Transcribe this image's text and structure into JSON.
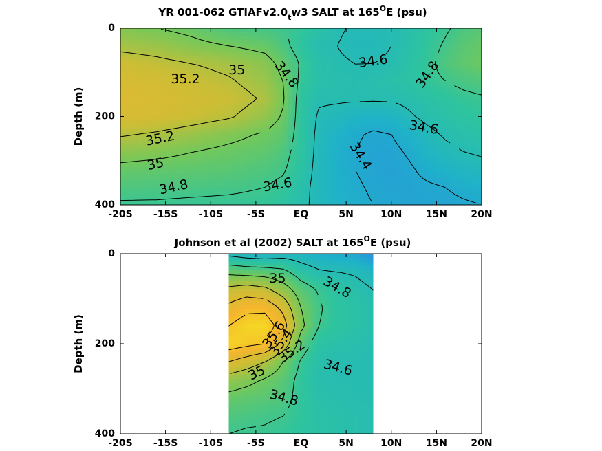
{
  "chart_data": [
    {
      "type": "heatmap",
      "title": "YR 001-062 GTIAFv2.0",
      "title_subscript": "t",
      "title_suffix": "w3 SALT at 165",
      "title_degree": "O",
      "title_end": "E (psu)",
      "ylabel": "Depth (m)",
      "x_ticks": [
        "-20S",
        "-15S",
        "-10S",
        "-5S",
        "EQ",
        "5N",
        "10N",
        "15N",
        "20N"
      ],
      "x_tick_values": [
        -20,
        -15,
        -10,
        -5,
        0,
        5,
        10,
        15,
        20
      ],
      "y_ticks": [
        "0",
        "200",
        "400"
      ],
      "y_tick_values": [
        0,
        200,
        400
      ],
      "xlim": [
        -20,
        20
      ],
      "ylim": [
        400,
        0
      ],
      "data_xlim": [
        -20,
        20
      ],
      "colormap": [
        "#2a8fe0",
        "#1fb2c8",
        "#2ec49e",
        "#74c85a",
        "#c9be36",
        "#f5b52e",
        "#f5e620"
      ],
      "color_range": [
        34.2,
        35.8
      ],
      "salinity_field": {
        "x": [
          -20,
          -16,
          -12,
          -8,
          -4,
          -2,
          0,
          2,
          4,
          6,
          8,
          10,
          12,
          14,
          16,
          18,
          20
        ],
        "depth": [
          0,
          40,
          80,
          120,
          160,
          200,
          240,
          280,
          320,
          360,
          400
        ],
        "values": [
          [
            35.05,
            35.0,
            34.95,
            34.85,
            34.82,
            34.8,
            34.75,
            34.68,
            34.62,
            34.58,
            34.58,
            34.6,
            34.66,
            34.72,
            34.78,
            34.85,
            34.9
          ],
          [
            35.15,
            35.12,
            35.05,
            35.0,
            34.95,
            34.85,
            34.72,
            34.62,
            34.6,
            34.56,
            34.56,
            34.6,
            34.66,
            34.74,
            34.82,
            34.9,
            34.95
          ],
          [
            35.3,
            35.25,
            35.2,
            35.15,
            35.07,
            34.95,
            34.78,
            34.66,
            34.62,
            34.6,
            34.6,
            34.62,
            34.68,
            34.76,
            34.86,
            34.92,
            34.97
          ],
          [
            35.35,
            35.32,
            35.28,
            35.22,
            35.12,
            35.0,
            34.76,
            34.66,
            34.64,
            34.62,
            34.64,
            34.66,
            34.7,
            34.75,
            34.8,
            34.84,
            34.87
          ],
          [
            35.38,
            35.35,
            35.32,
            35.28,
            35.18,
            35.02,
            34.72,
            34.62,
            34.62,
            34.62,
            34.62,
            34.62,
            34.64,
            34.68,
            34.72,
            34.76,
            34.78
          ],
          [
            35.35,
            35.33,
            35.28,
            35.22,
            35.1,
            34.98,
            34.72,
            34.58,
            34.55,
            34.5,
            34.48,
            34.5,
            34.58,
            34.64,
            34.68,
            34.72,
            34.74
          ],
          [
            35.22,
            35.18,
            35.12,
            35.05,
            34.98,
            34.92,
            34.72,
            34.56,
            34.48,
            34.42,
            34.38,
            34.4,
            34.48,
            34.56,
            34.62,
            34.66,
            34.68
          ],
          [
            35.08,
            35.05,
            35.0,
            34.96,
            34.92,
            34.86,
            34.72,
            34.55,
            34.45,
            34.4,
            34.36,
            34.36,
            34.42,
            34.5,
            34.56,
            34.6,
            34.62
          ],
          [
            34.95,
            34.93,
            34.92,
            34.9,
            34.86,
            34.82,
            34.7,
            34.54,
            34.46,
            34.4,
            34.36,
            34.35,
            34.38,
            34.44,
            34.48,
            34.52,
            34.55
          ],
          [
            34.86,
            34.85,
            34.84,
            34.83,
            34.8,
            34.76,
            34.66,
            34.54,
            34.46,
            34.42,
            34.38,
            34.36,
            34.36,
            34.38,
            34.4,
            34.44,
            34.46
          ],
          [
            34.78,
            34.78,
            34.77,
            34.76,
            34.75,
            34.72,
            34.64,
            34.55,
            34.48,
            34.44,
            34.4,
            34.38,
            34.36,
            34.36,
            34.36,
            34.38,
            34.4
          ]
        ]
      },
      "contour_levels": [
        34.4,
        34.6,
        34.8,
        35,
        35.2
      ],
      "contour_labels": [
        {
          "text": "35.2",
          "x": -12.8,
          "depth": 115,
          "rotate": 0
        },
        {
          "text": "35",
          "x": -7.1,
          "depth": 95,
          "rotate": 0
        },
        {
          "text": "34.8",
          "x": -1.6,
          "depth": 105,
          "rotate": 52
        },
        {
          "text": "34.6",
          "x": 8.0,
          "depth": 75,
          "rotate": -8
        },
        {
          "text": "34.8",
          "x": 14.0,
          "depth": 105,
          "rotate": -55
        },
        {
          "text": "34.6",
          "x": 13.6,
          "depth": 225,
          "rotate": 10
        },
        {
          "text": "35.2",
          "x": -15.6,
          "depth": 250,
          "rotate": -12
        },
        {
          "text": "34.4",
          "x": 6.6,
          "depth": 290,
          "rotate": 58
        },
        {
          "text": "35",
          "x": -16.1,
          "depth": 308,
          "rotate": -12
        },
        {
          "text": "34.8",
          "x": -14.1,
          "depth": 360,
          "rotate": -12
        },
        {
          "text": "34.6",
          "x": -2.6,
          "depth": 355,
          "rotate": -10
        }
      ]
    },
    {
      "type": "heatmap",
      "title": "Johnson et al (2002) SALT at 165",
      "title_degree": "O",
      "title_end": "E (psu)",
      "ylabel": "Depth (m)",
      "x_ticks": [
        "-20S",
        "-15S",
        "-10S",
        "-5S",
        "EQ",
        "5N",
        "10N",
        "15N",
        "20N"
      ],
      "x_tick_values": [
        -20,
        -15,
        -10,
        -5,
        0,
        5,
        10,
        15,
        20
      ],
      "y_ticks": [
        "0",
        "200",
        "400"
      ],
      "y_tick_values": [
        0,
        200,
        400
      ],
      "xlim": [
        -20,
        20
      ],
      "ylim": [
        400,
        0
      ],
      "data_xlim": [
        -8,
        8
      ],
      "colormap": [
        "#2a8fe0",
        "#1fb2c8",
        "#2ec49e",
        "#74c85a",
        "#c9be36",
        "#f5b52e",
        "#f5e620"
      ],
      "color_range": [
        34.2,
        35.8
      ],
      "salinity_field": {
        "x": [
          -8,
          -6,
          -4,
          -2,
          0,
          2,
          4,
          6,
          8
        ],
        "depth": [
          0,
          40,
          80,
          120,
          160,
          200,
          240,
          280,
          320,
          360,
          400
        ],
        "values": [
          [
            34.55,
            34.5,
            34.48,
            34.52,
            34.5,
            34.45,
            34.4,
            34.38,
            34.2
          ],
          [
            34.95,
            34.92,
            34.9,
            34.85,
            34.7,
            34.62,
            34.6,
            34.58,
            34.52
          ],
          [
            35.25,
            35.3,
            35.25,
            35.1,
            34.9,
            34.78,
            34.7,
            34.66,
            34.6
          ],
          [
            35.45,
            35.55,
            35.55,
            35.35,
            35.0,
            34.82,
            34.72,
            34.68,
            34.64
          ],
          [
            35.6,
            35.7,
            35.72,
            35.5,
            35.05,
            34.8,
            34.72,
            34.68,
            34.64
          ],
          [
            35.7,
            35.65,
            35.6,
            35.35,
            34.9,
            34.7,
            34.66,
            34.64,
            34.62
          ],
          [
            35.4,
            35.3,
            35.2,
            35.0,
            34.78,
            34.66,
            34.62,
            34.62,
            34.6
          ],
          [
            35.1,
            35.05,
            34.98,
            34.9,
            34.74,
            34.64,
            34.62,
            34.62,
            34.6
          ],
          [
            34.95,
            34.92,
            34.9,
            34.86,
            34.74,
            34.66,
            34.64,
            34.62,
            34.62
          ],
          [
            34.86,
            34.84,
            34.82,
            34.8,
            34.74,
            34.68,
            34.66,
            34.64,
            34.62
          ],
          [
            34.8,
            34.78,
            34.78,
            34.76,
            34.72,
            34.68,
            34.66,
            34.64,
            34.62
          ]
        ]
      },
      "contour_levels": [
        34.6,
        34.8,
        35,
        35.2,
        35.4,
        35.6
      ],
      "contour_labels": [
        {
          "text": "35",
          "x": -2.6,
          "depth": 55,
          "rotate": 0
        },
        {
          "text": "34.8",
          "x": 4.0,
          "depth": 75,
          "rotate": 30
        },
        {
          "text": "35.6",
          "x": -3.0,
          "depth": 180,
          "rotate": -55
        },
        {
          "text": "35.4",
          "x": -2.2,
          "depth": 197,
          "rotate": -55
        },
        {
          "text": "35.2",
          "x": -1.0,
          "depth": 217,
          "rotate": -35
        },
        {
          "text": "34.6",
          "x": 4.1,
          "depth": 253,
          "rotate": 15
        },
        {
          "text": "35",
          "x": -4.9,
          "depth": 265,
          "rotate": -25
        },
        {
          "text": "34.8",
          "x": -1.9,
          "depth": 320,
          "rotate": 15
        }
      ]
    }
  ]
}
